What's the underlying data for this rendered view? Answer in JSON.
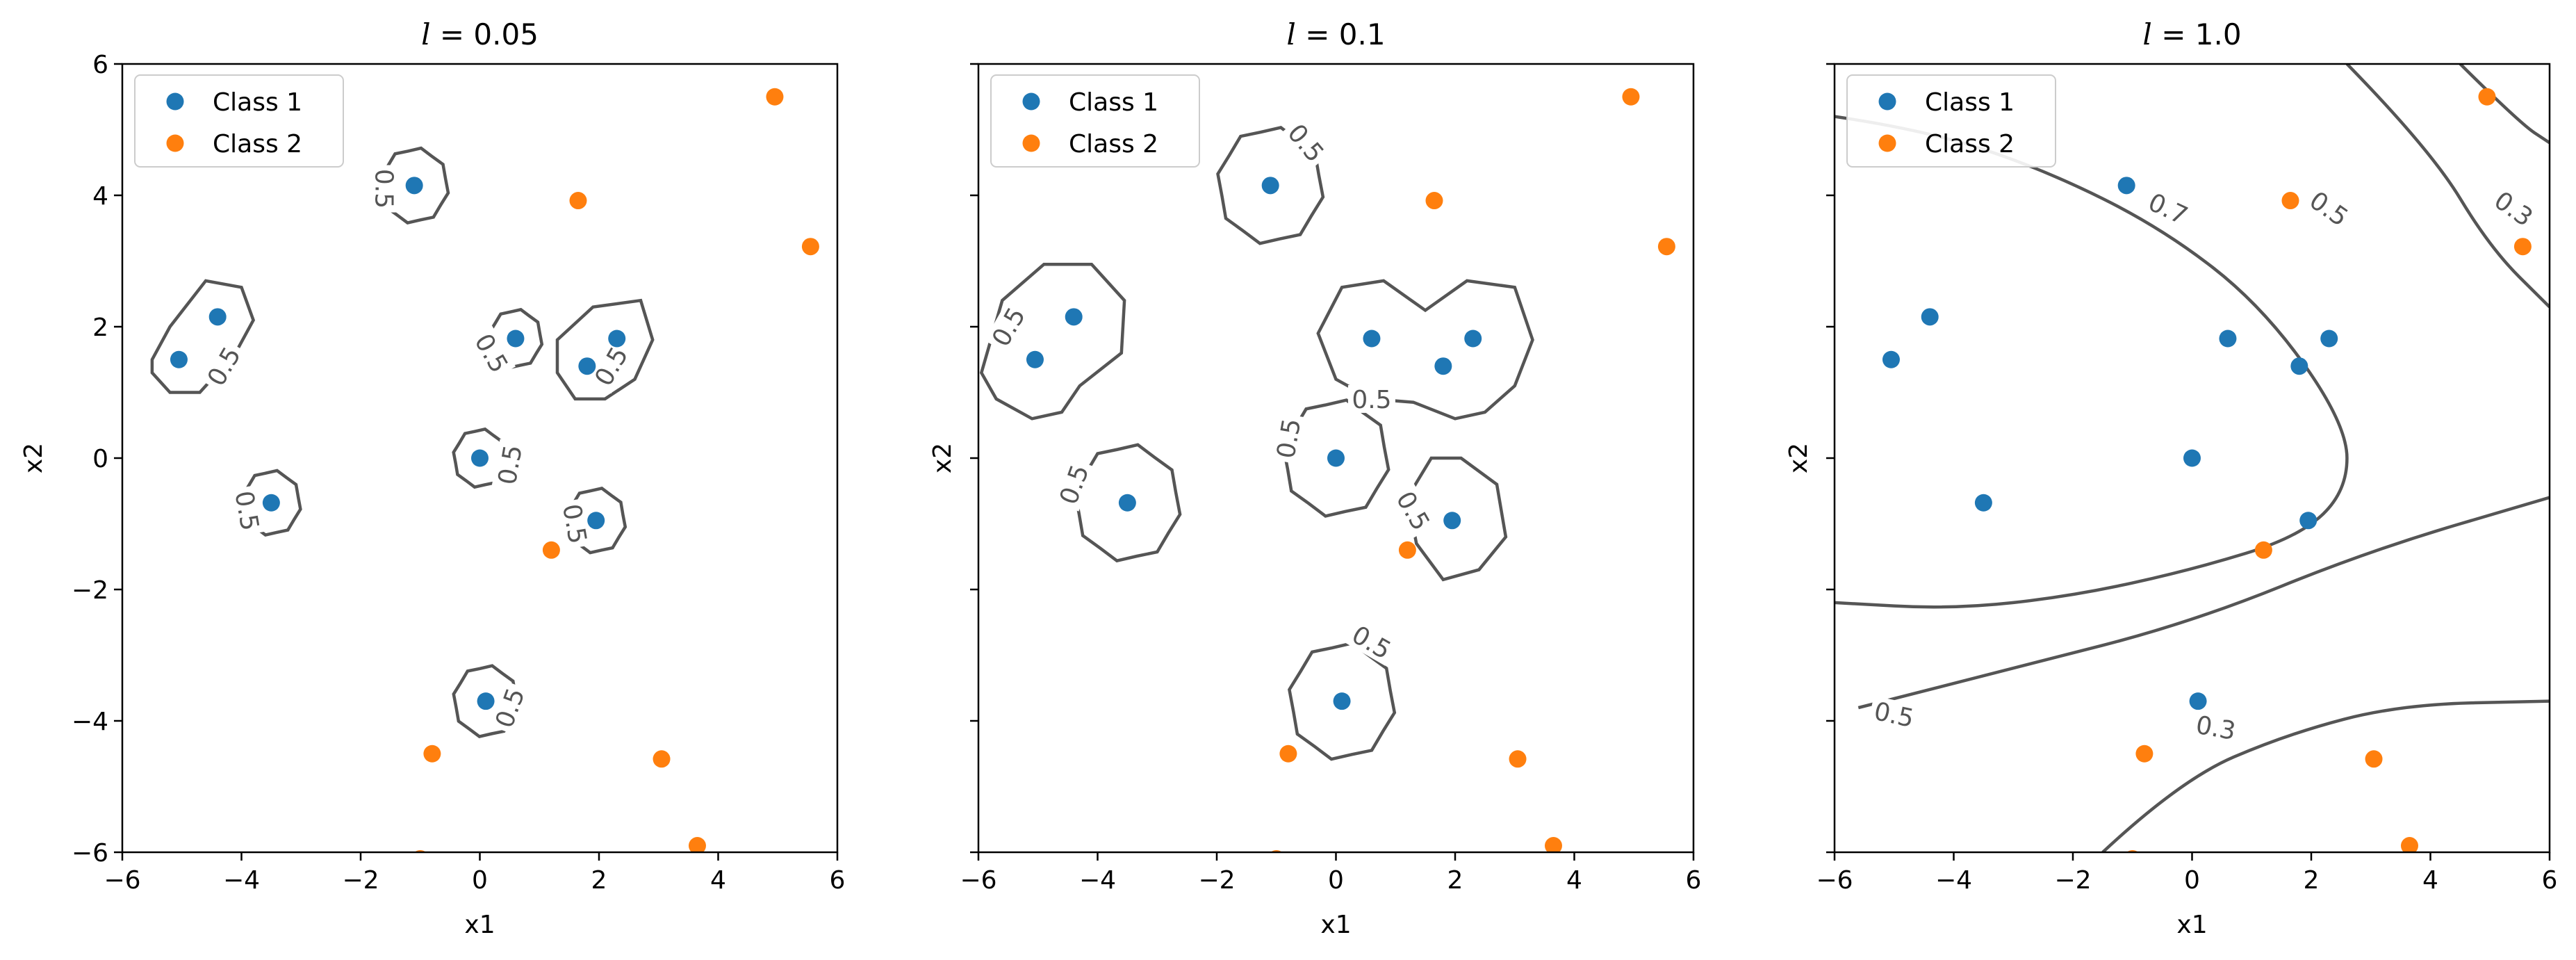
{
  "chart_data": [
    {
      "type": "scatter",
      "title": "l = 0.05",
      "title_var": "l",
      "title_value": "0.05",
      "xlabel": "x1",
      "ylabel": "x2",
      "xlim": [
        -6,
        6
      ],
      "ylim": [
        -6,
        6
      ],
      "xticks": [
        -6,
        -4,
        -2,
        0,
        2,
        4,
        6
      ],
      "yticks": [
        -6,
        -4,
        -2,
        0,
        2,
        4,
        6
      ],
      "show_ytick_labels": true,
      "grid": false,
      "legend": "top-left",
      "contour_labels": [
        {
          "text": "0.5",
          "x": -1.6,
          "y": 4.1,
          "rot": 90
        },
        {
          "text": "0.5",
          "x": -4.3,
          "y": 1.4,
          "rot": -60
        },
        {
          "text": "0.5",
          "x": 0.2,
          "y": 1.6,
          "rot": 60
        },
        {
          "text": "0.5",
          "x": 2.2,
          "y": 1.4,
          "rot": -60
        },
        {
          "text": "0.5",
          "x": 0.5,
          "y": -0.1,
          "rot": -80
        },
        {
          "text": "0.5",
          "x": -3.9,
          "y": -0.8,
          "rot": 80
        },
        {
          "text": "0.5",
          "x": 1.6,
          "y": -1.0,
          "rot": 80
        },
        {
          "text": "0.5",
          "x": 0.5,
          "y": -3.8,
          "rot": -70
        }
      ]
    },
    {
      "type": "scatter",
      "title": "l = 0.1",
      "title_var": "l",
      "title_value": "0.1",
      "xlabel": "x1",
      "ylabel": "x2",
      "xlim": [
        -6,
        6
      ],
      "ylim": [
        -6,
        6
      ],
      "xticks": [
        -6,
        -4,
        -2,
        0,
        2,
        4,
        6
      ],
      "yticks": [
        -6,
        -4,
        -2,
        0,
        2,
        4,
        6
      ],
      "show_ytick_labels": false,
      "grid": false,
      "legend": "top-left",
      "contour_labels": [
        {
          "text": "0.5",
          "x": -0.5,
          "y": 4.8,
          "rot": 50
        },
        {
          "text": "0.5",
          "x": -5.5,
          "y": 2.0,
          "rot": -60
        },
        {
          "text": "0.5",
          "x": 0.6,
          "y": 0.9,
          "rot": 0
        },
        {
          "text": "0.5",
          "x": -0.8,
          "y": 0.3,
          "rot": -80
        },
        {
          "text": "0.5",
          "x": -4.4,
          "y": -0.4,
          "rot": -70
        },
        {
          "text": "0.5",
          "x": 1.3,
          "y": -0.8,
          "rot": 60
        },
        {
          "text": "0.5",
          "x": 0.6,
          "y": -2.8,
          "rot": 30
        }
      ]
    },
    {
      "type": "scatter",
      "title": "l = 1.0",
      "title_var": "l",
      "title_value": "1.0",
      "xlabel": "x1",
      "ylabel": "x2",
      "xlim": [
        -6,
        6
      ],
      "ylim": [
        -6,
        6
      ],
      "xticks": [
        -6,
        -4,
        -2,
        0,
        2,
        4,
        6
      ],
      "yticks": [
        -6,
        -4,
        -2,
        0,
        2,
        4,
        6
      ],
      "show_ytick_labels": false,
      "grid": false,
      "legend": "top-left",
      "contour_labels": [
        {
          "text": "0.7",
          "x": -0.4,
          "y": 3.8,
          "rot": 25
        },
        {
          "text": "0.5",
          "x": 2.3,
          "y": 3.8,
          "rot": 35
        },
        {
          "text": "0.3",
          "x": 5.4,
          "y": 3.8,
          "rot": 35
        },
        {
          "text": "0.5",
          "x": -5.0,
          "y": -3.9,
          "rot": 12
        },
        {
          "text": "0.3",
          "x": 0.4,
          "y": -4.1,
          "rot": 10
        }
      ]
    }
  ],
  "series": [
    {
      "name": "Class 1",
      "color": "#1f77b4",
      "points": [
        [
          -1.1,
          4.15
        ],
        [
          -4.4,
          2.15
        ],
        [
          -5.05,
          1.5
        ],
        [
          0.6,
          1.82
        ],
        [
          2.3,
          1.82
        ],
        [
          1.8,
          1.4
        ],
        [
          0.0,
          0.0
        ],
        [
          -3.5,
          -0.68
        ],
        [
          1.95,
          -0.95
        ],
        [
          0.1,
          -3.7
        ]
      ]
    },
    {
      "name": "Class 2",
      "color": "#ff7f0e",
      "points": [
        [
          4.95,
          5.5
        ],
        [
          1.65,
          3.92
        ],
        [
          5.55,
          3.22
        ],
        [
          1.2,
          -1.4
        ],
        [
          -0.8,
          -4.5
        ],
        [
          3.05,
          -4.58
        ],
        [
          3.65,
          -5.9
        ],
        [
          -1.0,
          -6.1
        ]
      ]
    }
  ],
  "contour_color": "#555555"
}
